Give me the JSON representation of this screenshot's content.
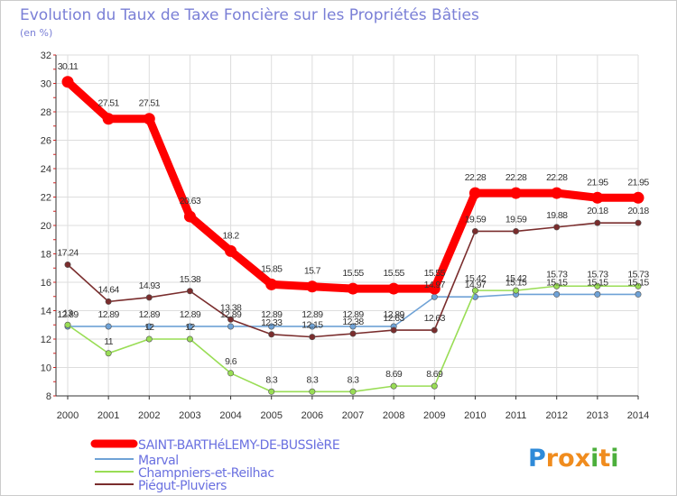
{
  "chart_data": {
    "type": "line",
    "title": "Evolution du Taux de Taxe Foncière sur les Propriétés Bâties",
    "unit_label": "(en %)",
    "x": [
      "2000",
      "2001",
      "2002",
      "2003",
      "2004",
      "2005",
      "2006",
      "2007",
      "2008",
      "2009",
      "2010",
      "2011",
      "2012",
      "2013",
      "2014"
    ],
    "ylim": [
      8,
      32
    ],
    "yticks": [
      8,
      10,
      12,
      14,
      16,
      18,
      20,
      22,
      24,
      26,
      28,
      30,
      32
    ],
    "grid": true,
    "legend_position": "bottom-left",
    "series": [
      {
        "name": "SAINT-BARTHéLEMY-DE-BUSSIèRE",
        "color": "#ff0000",
        "values": [
          30.11,
          27.51,
          27.51,
          20.63,
          18.2,
          15.85,
          15.7,
          15.55,
          15.55,
          15.55,
          22.28,
          22.28,
          22.28,
          21.95,
          21.95
        ],
        "labels": [
          "30.11",
          "27.51",
          "27.51",
          "20.63",
          "18.2",
          "15.85",
          "15.7",
          "15.55",
          "15.55",
          "15.55",
          "22.28",
          "22.28",
          "22.28",
          "21.95",
          "21.95"
        ]
      },
      {
        "name": "Marval",
        "color": "#6fa2d6",
        "values": [
          12.89,
          12.89,
          12.89,
          12.89,
          12.89,
          12.89,
          12.89,
          12.89,
          12.89,
          14.97,
          14.97,
          15.15,
          15.15,
          15.15,
          15.15
        ],
        "labels": [
          "12.89",
          "12.89",
          "12.89",
          "12.89",
          "12.89",
          "12.89",
          "12.89",
          "12.89",
          "12.89",
          "14.97",
          "14.97",
          "15.15",
          "15.15",
          "15.15",
          "15.15"
        ]
      },
      {
        "name": "Champniers-et-Reilhac",
        "color": "#99dd55",
        "values": [
          13,
          11,
          12,
          12,
          9.6,
          8.3,
          8.3,
          8.3,
          8.69,
          8.69,
          15.42,
          15.42,
          15.73,
          15.73,
          15.73
        ],
        "labels": [
          "13",
          "11",
          "12",
          "12",
          "9.6",
          "8.3",
          "8.3",
          "8.3",
          "8.69",
          "8.69",
          "15.42",
          "15.42",
          "15.73",
          "15.73",
          "15.73"
        ]
      },
      {
        "name": "Piégut-Pluviers",
        "color": "#7a2d2d",
        "values": [
          17.24,
          14.64,
          14.93,
          15.38,
          13.38,
          12.33,
          12.15,
          12.38,
          12.63,
          12.63,
          19.59,
          19.59,
          19.88,
          20.18,
          20.18
        ],
        "labels": [
          "17.24",
          "14.64",
          "14.93",
          "15.38",
          "13.38",
          "12.33",
          "12.15",
          "12.38",
          "12.63",
          "12.63",
          "19.59",
          "19.59",
          "19.88",
          "20.18",
          "20.18"
        ]
      }
    ]
  },
  "brand": {
    "letters": [
      "P",
      "r",
      "o",
      "x",
      "i",
      "t",
      "i"
    ],
    "colors": [
      "#2e8ad8",
      "#f08c1e",
      "#f08c1e",
      "#f08c1e",
      "#4caf3c",
      "#f08c1e",
      "#4caf3c"
    ]
  }
}
